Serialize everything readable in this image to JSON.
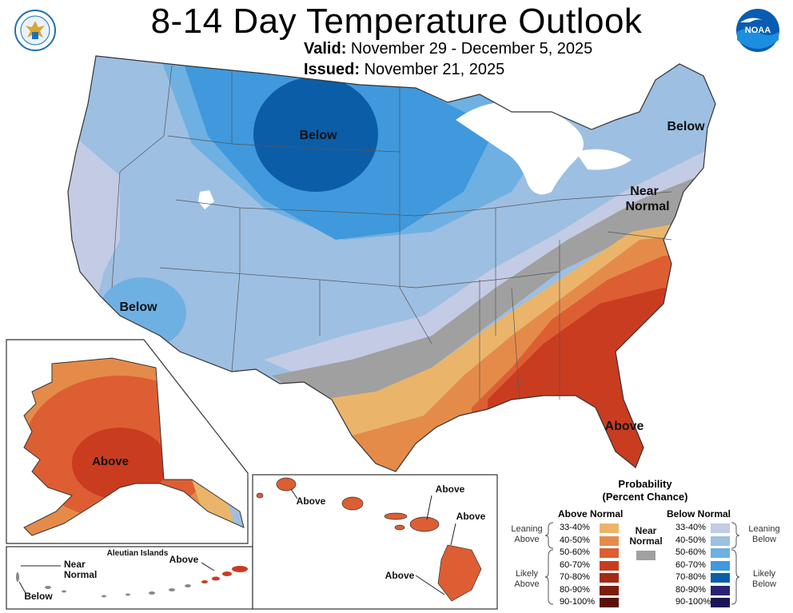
{
  "title": "8-14 Day Temperature Outlook",
  "valid": {
    "label": "Valid:",
    "value": "November 29 - December 5, 2025"
  },
  "issued": {
    "label": "Issued:",
    "value": "November 21, 2025"
  },
  "logos": {
    "left": "dept-of-commerce-seal",
    "right": "noaa-logo"
  },
  "map_labels": {
    "below_north": "Below",
    "below_northeast": "Below",
    "near_normal_east": "Near\nNormal",
    "below_southwest": "Below",
    "above_southeast": "Above",
    "alaska_above": "Above",
    "aleutian_title": "Aleutian Islands",
    "aleutian_above": "Above",
    "aleutian_near_normal": "Near\nNormal",
    "aleutian_below": "Below",
    "hawaii_above_1": "Above",
    "hawaii_above_2": "Above",
    "hawaii_above_3": "Above",
    "hawaii_above_4": "Above"
  },
  "legend": {
    "title": "Probability\n(Percent Chance)",
    "above_header": "Above Normal",
    "below_header": "Below Normal",
    "near_label": "Near\nNormal",
    "leaning_above": "Leaning\nAbove",
    "likely_above": "Likely\nAbove",
    "leaning_below": "Leaning\nBelow",
    "likely_below": "Likely\nBelow",
    "near_color": "#a0a0a0",
    "above": [
      {
        "range": "33-40%",
        "color": "#eab56a"
      },
      {
        "range": "40-50%",
        "color": "#e58b4a"
      },
      {
        "range": "50-60%",
        "color": "#dd5e33"
      },
      {
        "range": "60-70%",
        "color": "#c93c20"
      },
      {
        "range": "70-80%",
        "color": "#a52a15"
      },
      {
        "range": "80-90%",
        "color": "#7d1e0e"
      },
      {
        "range": "90-100%",
        "color": "#5a1208"
      }
    ],
    "below": [
      {
        "range": "33-40%",
        "color": "#c3cbe5"
      },
      {
        "range": "40-50%",
        "color": "#9dbfe2"
      },
      {
        "range": "50-60%",
        "color": "#6fb0e2"
      },
      {
        "range": "60-70%",
        "color": "#3f99dc"
      },
      {
        "range": "70-80%",
        "color": "#0c5da7"
      },
      {
        "range": "80-90%",
        "color": "#2a2375"
      },
      {
        "range": "90-100%",
        "color": "#1c1555"
      }
    ]
  }
}
